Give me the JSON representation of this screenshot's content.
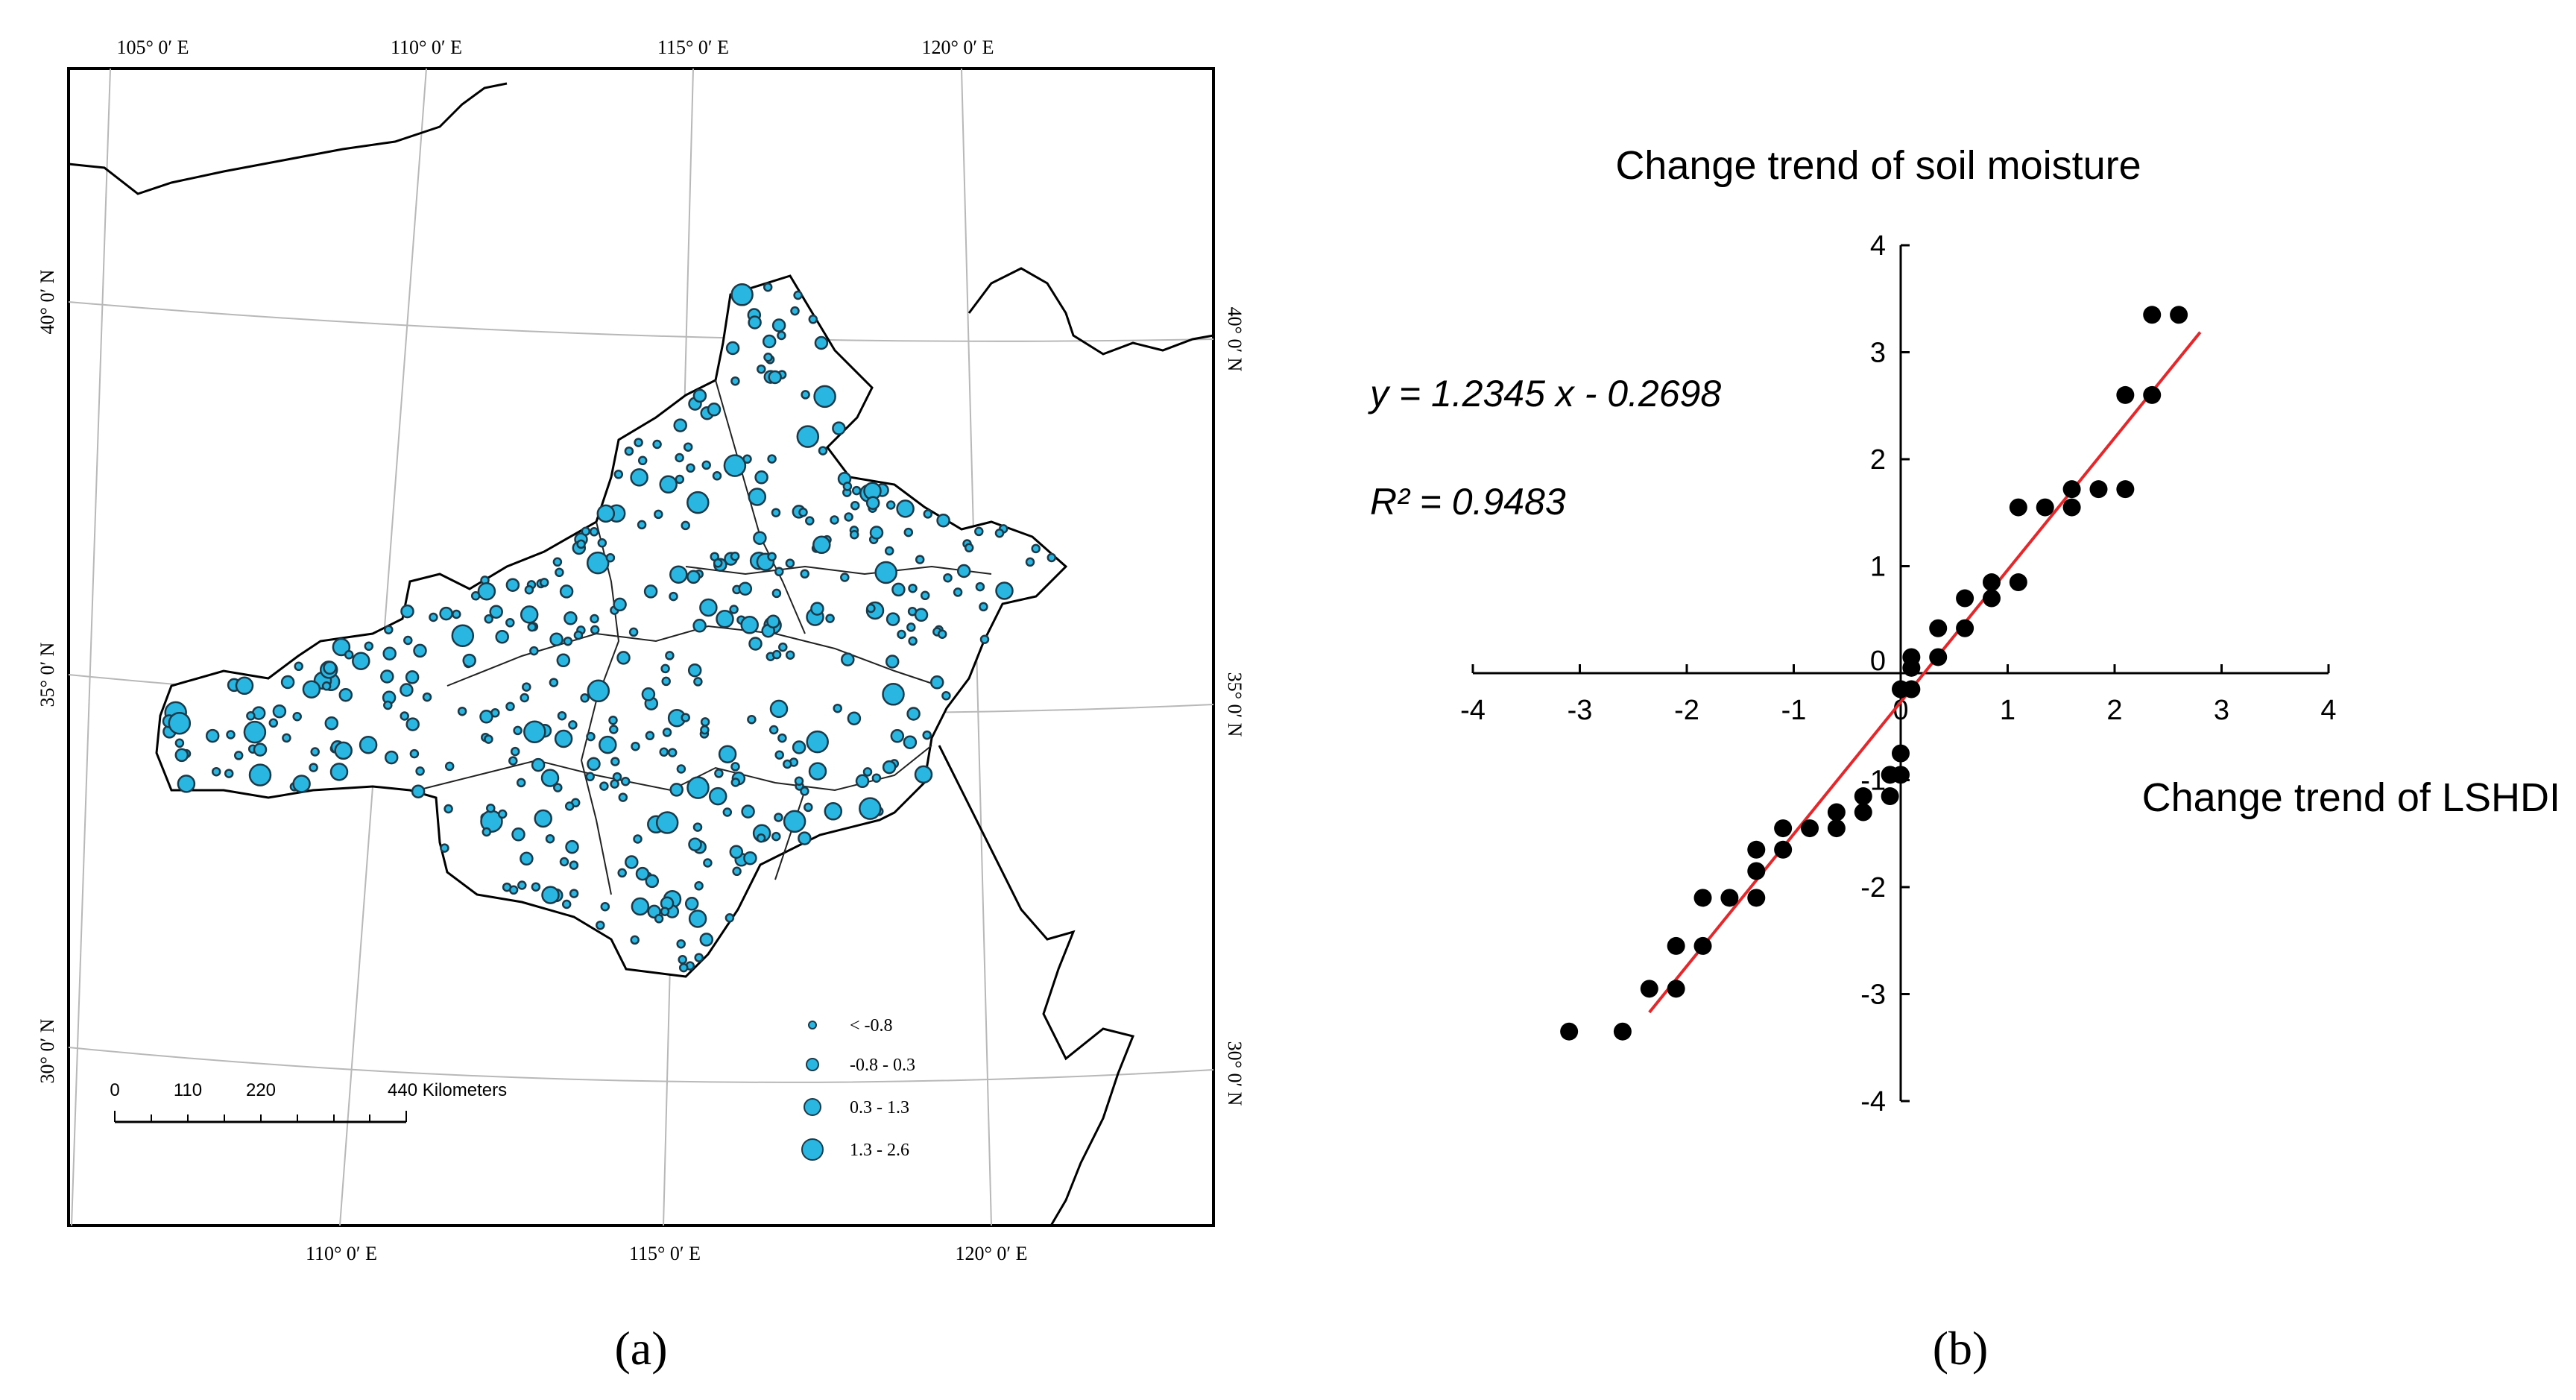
{
  "panel_labels": {
    "a": "(a)",
    "b": "(b)"
  },
  "map": {
    "top_lon_labels": [
      "105° 0′ E",
      "110° 0′ E",
      "115° 0′ E",
      "120° 0′ E"
    ],
    "bottom_lon_labels": [
      "110° 0′ E",
      "115° 0′ E",
      "120° 0′ E"
    ],
    "left_lat_labels": [
      "40° 0′ N",
      "35° 0′ N",
      "30° 0′ N"
    ],
    "right_lat_labels": [
      "40° 0′ N",
      "35° 0′ N",
      "30° 0′ N"
    ],
    "scale": {
      "ticks": [
        "0",
        "110",
        "220"
      ],
      "end_label": "440 Kilometers"
    },
    "legend": {
      "items": [
        {
          "label": "< -0.8"
        },
        {
          "label": "-0.8 - 0.3"
        },
        {
          "label": "0.3 - 1.3"
        },
        {
          "label": "1.3 - 2.6"
        }
      ],
      "fill_color": "#29b6e0",
      "stroke_color": "#1a3a4a"
    }
  },
  "chart_data": {
    "type": "scatter",
    "title": "Change trend of soil moisture",
    "xlabel": "Change trend of LSHDI",
    "ylabel": "Change trend of soil moisture",
    "xlim": [
      -4,
      4
    ],
    "ylim": [
      -4,
      4
    ],
    "x_ticks": [
      "-4",
      "-3",
      "-2",
      "-1",
      "0",
      "1",
      "2",
      "3",
      "4"
    ],
    "y_ticks": [
      "-4",
      "-3",
      "-2",
      "-1",
      "0",
      "1",
      "2",
      "3",
      "4"
    ],
    "equation": "y = 1.2345 x - 0.2698",
    "r_squared": "R² = 0.9483",
    "fit": {
      "slope": 1.2345,
      "intercept": -0.2698,
      "x_range": [
        -2.35,
        2.8
      ],
      "color": "#e8262a"
    },
    "point_color": "#000000",
    "points": [
      [
        -3.1,
        -3.35
      ],
      [
        -2.6,
        -3.35
      ],
      [
        -2.35,
        -2.95
      ],
      [
        -2.1,
        -2.95
      ],
      [
        -2.1,
        -2.55
      ],
      [
        -1.85,
        -2.55
      ],
      [
        -1.85,
        -2.1
      ],
      [
        -1.6,
        -2.1
      ],
      [
        -1.35,
        -2.1
      ],
      [
        -1.35,
        -1.85
      ],
      [
        -1.35,
        -1.65
      ],
      [
        -1.1,
        -1.65
      ],
      [
        -1.1,
        -1.45
      ],
      [
        -0.85,
        -1.45
      ],
      [
        -0.6,
        -1.45
      ],
      [
        -0.6,
        -1.3
      ],
      [
        -0.35,
        -1.3
      ],
      [
        -0.35,
        -1.15
      ],
      [
        -0.1,
        -1.15
      ],
      [
        -0.1,
        -0.95
      ],
      [
        0.0,
        -0.95
      ],
      [
        0.0,
        -0.75
      ],
      [
        0.0,
        -0.15
      ],
      [
        0.1,
        -0.15
      ],
      [
        0.1,
        0.05
      ],
      [
        0.1,
        0.15
      ],
      [
        0.35,
        0.15
      ],
      [
        0.35,
        0.42
      ],
      [
        0.6,
        0.42
      ],
      [
        0.6,
        0.7
      ],
      [
        0.85,
        0.7
      ],
      [
        0.85,
        0.85
      ],
      [
        1.1,
        0.85
      ],
      [
        1.1,
        1.55
      ],
      [
        1.35,
        1.55
      ],
      [
        1.6,
        1.55
      ],
      [
        1.6,
        1.72
      ],
      [
        1.85,
        1.72
      ],
      [
        2.1,
        1.72
      ],
      [
        2.1,
        2.6
      ],
      [
        2.35,
        2.6
      ],
      [
        2.35,
        3.35
      ],
      [
        2.6,
        3.35
      ]
    ]
  }
}
